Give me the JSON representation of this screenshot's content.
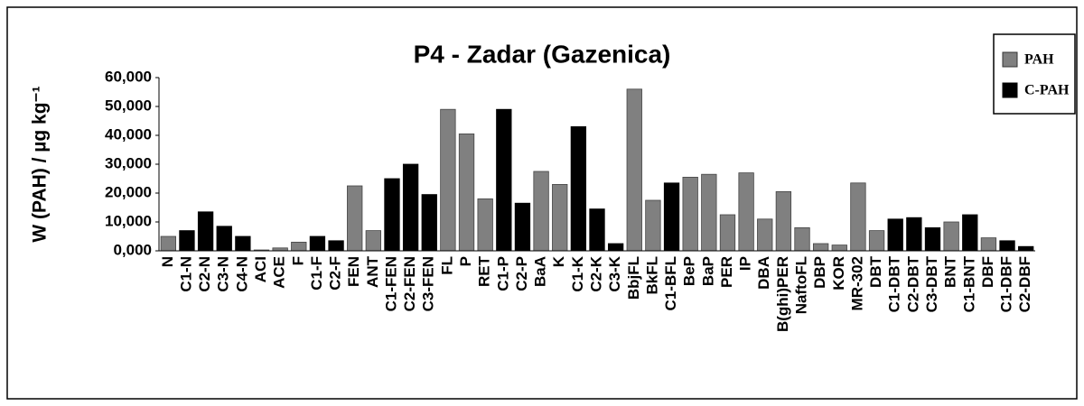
{
  "chart_data": {
    "type": "bar",
    "title": "P4 - Zadar (Gazenica)",
    "ylabel": "W (PAH) / µg kg⁻¹",
    "categories": [
      "N",
      "C1-N",
      "C2-N",
      "C3-N",
      "C4-N",
      "ACI",
      "ACE",
      "F",
      "C1-F",
      "C2-F",
      "FEN",
      "ANT",
      "C1-FEN",
      "C2-FEN",
      "C3-FEN",
      "FL",
      "P",
      "RET",
      "C1-P",
      "C2-P",
      "BaA",
      "K",
      "C1-K",
      "C2-K",
      "C3-K",
      "BbjFL",
      "BkFL",
      "C1-BFL",
      "BeP",
      "BaP",
      "PER",
      "IP",
      "DBA",
      "B(ghi)PER",
      "NaftoFL",
      "DBP",
      "KOR",
      "MR-302",
      "DBT",
      "C1-DBT",
      "C2-DBT",
      "C3-DBT",
      "BNT",
      "C1-BNT",
      "DBF",
      "C1-DBF",
      "C2-DBF"
    ],
    "series": [
      {
        "name": "PAH",
        "color": "#808080",
        "values": [
          5,
          null,
          null,
          null,
          null,
          0.3,
          1,
          3,
          null,
          null,
          22.5,
          7,
          null,
          null,
          null,
          49,
          40.5,
          18,
          null,
          null,
          27.5,
          23,
          null,
          null,
          null,
          56,
          17.5,
          null,
          25.5,
          26.5,
          12.5,
          27,
          11,
          20.5,
          8,
          2.5,
          2,
          23.5,
          7,
          null,
          null,
          null,
          10,
          null,
          4.5,
          null,
          null
        ]
      },
      {
        "name": "C-PAH",
        "color": "#000000",
        "values": [
          null,
          7,
          13.5,
          8.5,
          5,
          null,
          null,
          null,
          5,
          3.5,
          null,
          null,
          25,
          30,
          19.5,
          null,
          null,
          null,
          49,
          16.5,
          null,
          null,
          43,
          14.5,
          2.5,
          null,
          null,
          23.5,
          null,
          null,
          null,
          null,
          null,
          null,
          null,
          null,
          null,
          null,
          null,
          11,
          11.5,
          8,
          null,
          12.5,
          null,
          3.5,
          1.5
        ]
      }
    ],
    "ylim": [
      0,
      60
    ],
    "yticks": [
      {
        "value": 0,
        "label": "0,000"
      },
      {
        "value": 10,
        "label": "10,000"
      },
      {
        "value": 20,
        "label": "20,000"
      },
      {
        "value": 30,
        "label": "30,000"
      },
      {
        "value": 40,
        "label": "40,000"
      },
      {
        "value": 50,
        "label": "50,000"
      },
      {
        "value": 60,
        "label": "60,000"
      }
    ],
    "legend": "upper right"
  }
}
